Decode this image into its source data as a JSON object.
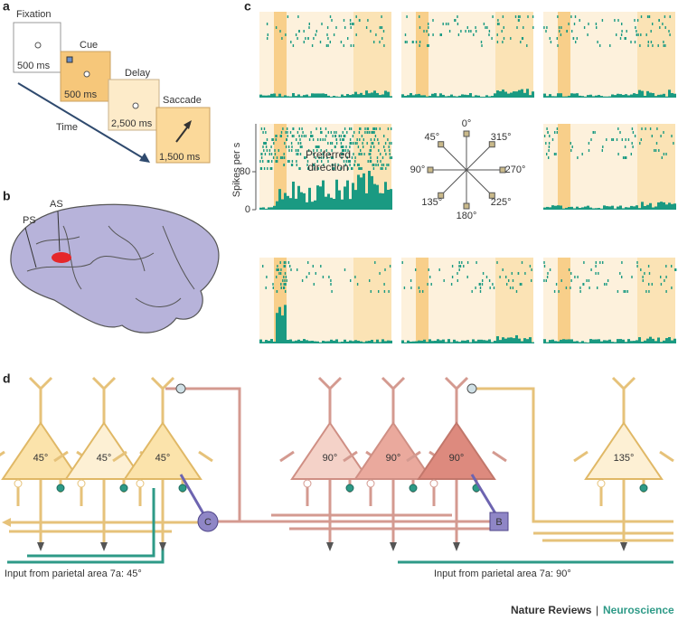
{
  "panels": {
    "a": "a",
    "b": "b",
    "c": "c",
    "d": "d"
  },
  "task": {
    "stages": [
      {
        "label": "Fixation",
        "duration": "500 ms"
      },
      {
        "label": "Cue",
        "duration": "500 ms"
      },
      {
        "label": "Delay",
        "duration": "2,500 ms"
      },
      {
        "label": "Saccade",
        "duration": "1,500 ms"
      }
    ],
    "time_label": "Time"
  },
  "brain": {
    "labels": [
      "PS",
      "AS"
    ]
  },
  "rasters": {
    "y_label": "Spikes per s",
    "yticks": [
      0,
      80
    ],
    "preferred_label": [
      "Preferred",
      "direction"
    ],
    "directions": [
      "45°",
      "0°",
      "315°",
      "90°",
      "270°",
      "135°",
      "180°",
      "225°"
    ]
  },
  "circuit": {
    "neurons": [
      "45°",
      "45°",
      "45°",
      "90°",
      "90°",
      "90°",
      "135°"
    ],
    "interneurons": [
      "C",
      "B"
    ],
    "inputs": [
      "Input from parietal area 7a: 45°",
      "Input from parietal area 7a: 90°"
    ]
  },
  "footer": {
    "journal": "Nature Reviews",
    "separator": "|",
    "section": "Neuroscience"
  }
}
